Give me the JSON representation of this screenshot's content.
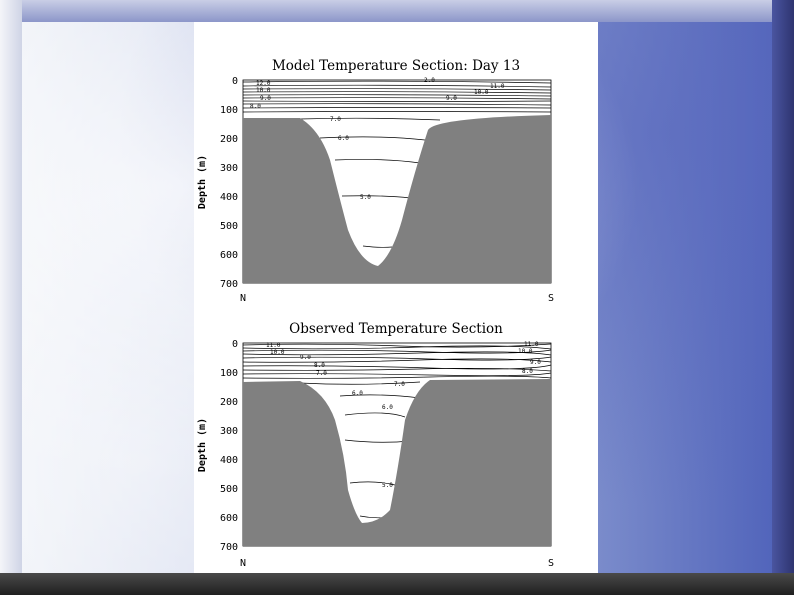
{
  "panels": [
    {
      "title": "Model Temperature Section: Day 13",
      "ylabel": "Depth (m)",
      "yticks": [
        "0",
        "100",
        "200",
        "300",
        "400",
        "500",
        "600",
        "700"
      ],
      "xticks": [
        "N",
        "S"
      ],
      "contour_labels": [
        "12.0",
        "10.0",
        "9.0",
        "8.0",
        "2.0",
        "11.0",
        "10.0",
        "9.0",
        "7.0",
        "6.0",
        "5.0"
      ]
    },
    {
      "title": "Observed Temperature Section",
      "ylabel": "Depth (m)",
      "yticks": [
        "0",
        "100",
        "200",
        "300",
        "400",
        "500",
        "600",
        "700"
      ],
      "xticks": [
        "N",
        "S"
      ],
      "contour_labels": [
        "11.0",
        "10.0",
        "9.0",
        "8.0",
        "7.0",
        "6.0",
        "11.0",
        "10.0",
        "9.0",
        "8.0",
        "7.0",
        "6.0",
        "5.0"
      ]
    }
  ]
}
